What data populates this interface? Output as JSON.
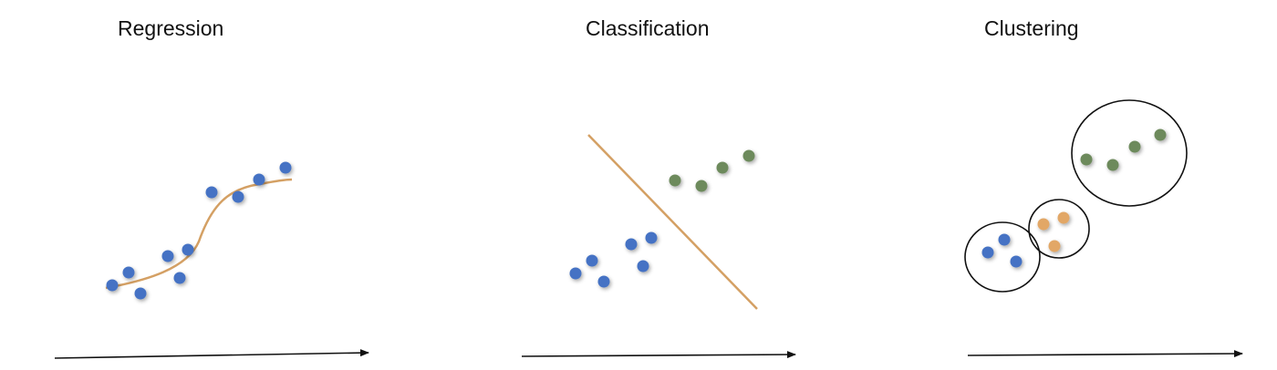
{
  "panels": [
    {
      "id": "regression",
      "title": "Regression"
    },
    {
      "id": "classification",
      "title": "Classification"
    },
    {
      "id": "clustering",
      "title": "Clustering"
    }
  ],
  "colors": {
    "background": "#ffffff",
    "blue_point": "#4472c4",
    "green_point": "#6d8a5c",
    "orange_point": "#e2a766",
    "fit_line": "#d4a064",
    "axis": "#111111",
    "cluster_outline": "#111111"
  }
}
